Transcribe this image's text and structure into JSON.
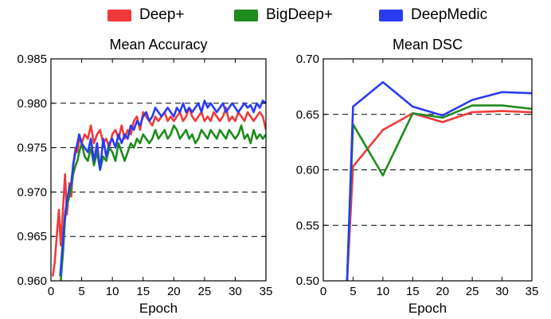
{
  "legend": {
    "items": [
      {
        "label": "Deep+",
        "color": "#f03a3a"
      },
      {
        "label": "BigDeep+",
        "color": "#1e8c1e"
      },
      {
        "label": "DeepMedic",
        "color": "#2a3cf0"
      }
    ]
  },
  "chart_data": [
    {
      "type": "line",
      "title": "Mean Accuracy",
      "xlabel": "Epoch",
      "ylabel": "",
      "xlim": [
        0,
        35
      ],
      "ylim": [
        0.96,
        0.985
      ],
      "xticks": [
        0,
        5,
        10,
        15,
        20,
        25,
        30,
        35
      ],
      "xtick_labels": [
        "0",
        "5",
        "10",
        "15",
        "20",
        "25",
        "30",
        "35"
      ],
      "yticks": [
        0.96,
        0.965,
        0.97,
        0.975,
        0.98,
        0.985
      ],
      "ytick_labels": [
        "0.960",
        "0.965",
        "0.970",
        "0.975",
        "0.980",
        "0.985"
      ],
      "grid": "dashed horizontal",
      "series": [
        {
          "name": "Deep+",
          "color": "#f03a3a",
          "x": [
            0.3,
            0.6,
            1,
            1.3,
            1.6,
            2,
            2.3,
            2.6,
            3,
            3.3,
            3.6,
            4,
            4.3,
            4.6,
            5,
            5.5,
            6,
            6.5,
            7,
            7.5,
            8,
            8.5,
            9,
            9.5,
            10,
            10.5,
            11,
            11.5,
            12,
            12.5,
            13,
            13.5,
            14,
            14.5,
            15,
            15.5,
            16,
            16.5,
            17,
            17.5,
            18,
            18.5,
            19,
            19.5,
            20,
            20.5,
            21,
            21.5,
            22,
            22.5,
            23,
            23.5,
            24,
            24.5,
            25,
            25.5,
            26,
            26.5,
            27,
            27.5,
            28,
            28.5,
            29,
            29.5,
            30,
            30.5,
            31,
            31.5,
            32,
            32.5,
            33,
            33.5,
            34,
            34.5,
            35
          ],
          "y": [
            0.9605,
            0.962,
            0.9655,
            0.968,
            0.964,
            0.9685,
            0.972,
            0.9675,
            0.971,
            0.9695,
            0.973,
            0.975,
            0.9745,
            0.976,
            0.9755,
            0.9765,
            0.976,
            0.9775,
            0.9755,
            0.9765,
            0.977,
            0.9755,
            0.976,
            0.975,
            0.9765,
            0.977,
            0.976,
            0.9775,
            0.976,
            0.977,
            0.9765,
            0.978,
            0.9785,
            0.977,
            0.979,
            0.9785,
            0.978,
            0.9775,
            0.9785,
            0.978,
            0.9785,
            0.979,
            0.978,
            0.9785,
            0.978,
            0.9785,
            0.979,
            0.978,
            0.9785,
            0.9795,
            0.9785,
            0.978,
            0.9785,
            0.979,
            0.978,
            0.9785,
            0.978,
            0.979,
            0.9785,
            0.978,
            0.9785,
            0.9795,
            0.978,
            0.9785,
            0.978,
            0.979,
            0.9785,
            0.978,
            0.979,
            0.9785,
            0.978,
            0.9785,
            0.979,
            0.9785,
            0.977
          ]
        },
        {
          "name": "BigDeep+",
          "color": "#1e8c1e",
          "x": [
            1.6,
            2,
            2.3,
            2.6,
            3,
            3.3,
            3.6,
            4,
            4.3,
            4.6,
            5,
            5.5,
            6,
            6.5,
            7,
            7.5,
            8,
            8.5,
            9,
            9.5,
            10,
            10.5,
            11,
            11.5,
            12,
            12.5,
            13,
            13.5,
            14,
            14.5,
            15,
            15.5,
            16,
            16.5,
            17,
            17.5,
            18,
            18.5,
            19,
            19.5,
            20,
            20.5,
            21,
            21.5,
            22,
            22.5,
            23,
            23.5,
            24,
            24.5,
            25,
            25.5,
            26,
            26.5,
            27,
            27.5,
            28,
            28.5,
            29,
            29.5,
            30,
            30.5,
            31,
            31.5,
            32,
            32.5,
            33,
            33.5,
            34,
            34.5,
            35
          ],
          "y": [
            0.96,
            0.9635,
            0.967,
            0.9685,
            0.9695,
            0.9705,
            0.972,
            0.973,
            0.9735,
            0.9745,
            0.9755,
            0.974,
            0.9735,
            0.975,
            0.973,
            0.9745,
            0.9725,
            0.974,
            0.9735,
            0.975,
            0.9745,
            0.9735,
            0.9755,
            0.9745,
            0.9735,
            0.9745,
            0.9755,
            0.975,
            0.976,
            0.9755,
            0.9765,
            0.976,
            0.9755,
            0.976,
            0.977,
            0.976,
            0.9765,
            0.977,
            0.976,
            0.9765,
            0.9775,
            0.977,
            0.976,
            0.9765,
            0.977,
            0.976,
            0.9765,
            0.9755,
            0.976,
            0.977,
            0.9765,
            0.976,
            0.977,
            0.9765,
            0.976,
            0.977,
            0.9765,
            0.976,
            0.977,
            0.9765,
            0.976,
            0.9765,
            0.9775,
            0.976,
            0.9765,
            0.9755,
            0.977,
            0.976,
            0.9765,
            0.976,
            0.9765
          ]
        },
        {
          "name": "DeepMedic",
          "color": "#2a3cf0",
          "x": [
            1.5,
            2,
            2.3,
            2.6,
            3,
            3.3,
            3.6,
            4,
            4.3,
            4.6,
            5,
            5.5,
            6,
            6.5,
            7,
            7.5,
            8,
            8.5,
            9,
            9.5,
            10,
            10.5,
            11,
            11.5,
            12,
            12.5,
            13,
            13.5,
            14,
            14.5,
            15,
            15.5,
            16,
            16.5,
            17,
            17.5,
            18,
            18.5,
            19,
            19.5,
            20,
            20.5,
            21,
            21.5,
            22,
            22.5,
            23,
            23.5,
            24,
            24.5,
            25,
            25.5,
            26,
            26.5,
            27,
            27.5,
            28,
            28.5,
            29,
            29.5,
            30,
            30.5,
            31,
            31.5,
            32,
            32.5,
            33,
            33.5,
            34,
            34.5,
            35
          ],
          "y": [
            0.9605,
            0.965,
            0.9675,
            0.969,
            0.9705,
            0.971,
            0.973,
            0.9745,
            0.9755,
            0.9765,
            0.9755,
            0.975,
            0.9745,
            0.976,
            0.9735,
            0.9755,
            0.9725,
            0.976,
            0.974,
            0.9755,
            0.976,
            0.975,
            0.9765,
            0.9755,
            0.9765,
            0.976,
            0.9775,
            0.977,
            0.978,
            0.9775,
            0.9785,
            0.979,
            0.978,
            0.9785,
            0.9795,
            0.979,
            0.9785,
            0.979,
            0.9795,
            0.979,
            0.9785,
            0.9795,
            0.979,
            0.98,
            0.979,
            0.9795,
            0.979,
            0.9795,
            0.98,
            0.979,
            0.9803,
            0.9795,
            0.98,
            0.9795,
            0.979,
            0.9795,
            0.98,
            0.979,
            0.9795,
            0.98,
            0.9795,
            0.979,
            0.9795,
            0.98,
            0.9795,
            0.9798,
            0.979,
            0.98,
            0.9795,
            0.9803,
            0.98
          ]
        }
      ]
    },
    {
      "type": "line",
      "title": "Mean DSC",
      "xlabel": "Epoch",
      "ylabel": "",
      "xlim": [
        0,
        35
      ],
      "ylim": [
        0.5,
        0.7
      ],
      "xticks": [
        0,
        5,
        10,
        15,
        20,
        25,
        30,
        35
      ],
      "xtick_labels": [
        "0",
        "5",
        "10",
        "15",
        "20",
        "25",
        "30",
        "35"
      ],
      "yticks": [
        0.5,
        0.55,
        0.6,
        0.65,
        0.7
      ],
      "ytick_labels": [
        "0.50",
        "0.55",
        "0.60",
        "0.65",
        "0.70"
      ],
      "grid": "dashed horizontal",
      "series": [
        {
          "name": "Deep+",
          "color": "#f03a3a",
          "x": [
            4,
            5,
            10,
            15,
            20,
            25,
            30,
            35
          ],
          "y": [
            0.5,
            0.603,
            0.636,
            0.651,
            0.643,
            0.652,
            0.653,
            0.652
          ]
        },
        {
          "name": "BigDeep+",
          "color": "#1e8c1e",
          "x": [
            4,
            5,
            10,
            15,
            20,
            25,
            30,
            35
          ],
          "y": [
            0.5,
            0.641,
            0.595,
            0.651,
            0.647,
            0.658,
            0.658,
            0.655
          ]
        },
        {
          "name": "DeepMedic",
          "color": "#2a3cf0",
          "x": [
            4,
            5,
            10,
            15,
            20,
            25,
            30,
            35
          ],
          "y": [
            0.5,
            0.657,
            0.679,
            0.657,
            0.649,
            0.663,
            0.67,
            0.669
          ]
        }
      ]
    }
  ]
}
